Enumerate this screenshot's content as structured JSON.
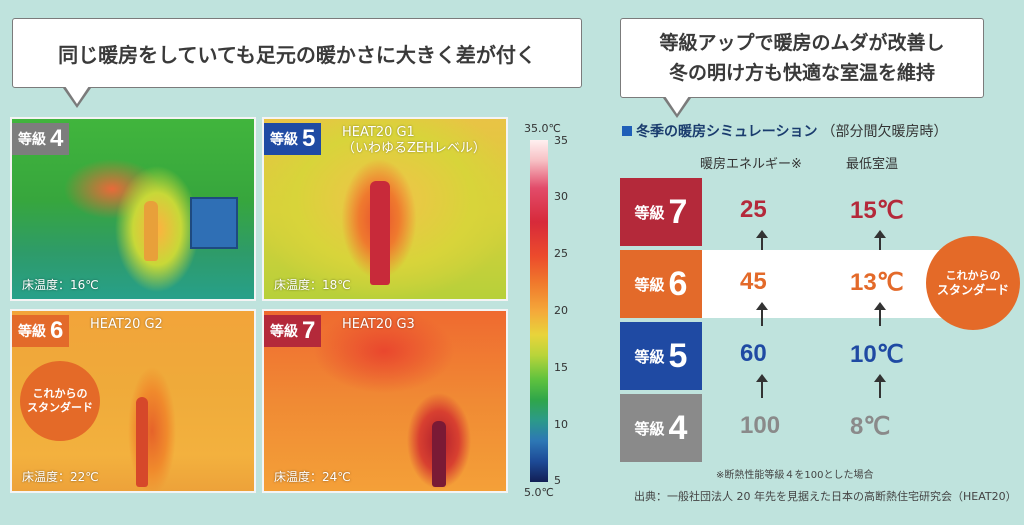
{
  "bubbles": {
    "left": "同じ暖房をしていても足元の暖かさに大きく差が付く",
    "right_line1": "等級アップで暖房のムダが改善し",
    "right_line2": "冬の明け方も快適な室温を維持"
  },
  "panels": [
    {
      "grade_word": "等級",
      "grade_num": "4",
      "caption1": "",
      "caption2": "",
      "floor": "床温度：16℃"
    },
    {
      "grade_word": "等級",
      "grade_num": "5",
      "caption1": "HEAT20 G1",
      "caption2": "（いわゆるZEHレベル）",
      "floor": "床温度：18℃"
    },
    {
      "grade_word": "等級",
      "grade_num": "6",
      "caption1": "HEAT20 G2",
      "caption2": "",
      "floor": "床温度：22℃"
    },
    {
      "grade_word": "等級",
      "grade_num": "7",
      "caption1": "HEAT20 G3",
      "caption2": "",
      "floor": "床温度：24℃"
    }
  ],
  "standard_badge": {
    "line1": "これからの",
    "line2": "スタンダード"
  },
  "scale": {
    "top": "35.0℃",
    "bottom": "5.0℃",
    "ticks": [
      "35",
      "30",
      "25",
      "20",
      "15",
      "10",
      "5"
    ]
  },
  "simulation": {
    "title": "冬季の暖房シミュレーション",
    "title_note": "（部分間欠暖房時）",
    "col_energy": "暖房エネルギー※",
    "col_temp": "最低室温",
    "rows": [
      {
        "grade_word": "等級",
        "grade_num": "7",
        "energy": "25",
        "temp": "15℃",
        "color": "#b4293a"
      },
      {
        "grade_word": "等級",
        "grade_num": "6",
        "energy": "45",
        "temp": "13℃",
        "color": "#e36a2a"
      },
      {
        "grade_word": "等級",
        "grade_num": "5",
        "energy": "60",
        "temp": "10℃",
        "color": "#1f4aa3"
      },
      {
        "grade_word": "等級",
        "grade_num": "4",
        "energy": "100",
        "temp": "8℃",
        "color": "#8a8a8a"
      }
    ],
    "footnote": "※断熱性能等級４を100とした場合",
    "source": "出典：一般社団法人 20 年先を見据えた日本の高断熱住宅研究会（HEAT20）"
  }
}
